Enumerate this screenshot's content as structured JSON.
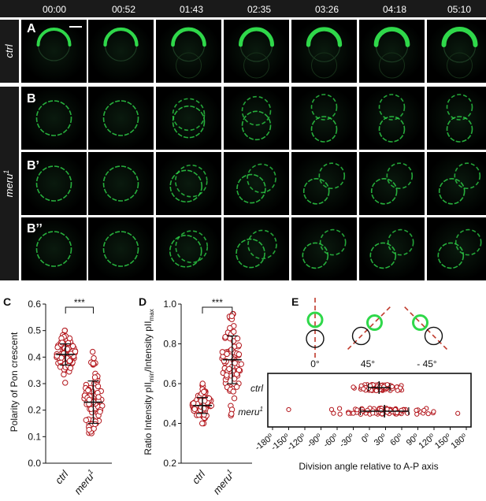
{
  "timepoints": [
    "00:00",
    "00:52",
    "01:43",
    "02:35",
    "03:26",
    "04:18",
    "05:10"
  ],
  "condition_labels": {
    "ctrl": "ctrl",
    "meru": "meru",
    "meru_sup": "1"
  },
  "row_labels": [
    "A",
    "B",
    "B’",
    "B’’"
  ],
  "panel_labels": {
    "c": "C",
    "d": "D",
    "e": "E"
  },
  "colors": {
    "bar": "#1a1a1a",
    "green": "#2fd84a",
    "point": "#b3161c",
    "dash": "#c0392b"
  },
  "chart_data": [
    {
      "panel": "C",
      "type": "scatter",
      "ylabel": "Polarity of Pon crescent",
      "ylim": [
        0.0,
        0.6
      ],
      "yticks": [
        "0.0",
        "0.1",
        "0.2",
        "0.3",
        "0.4",
        "0.5",
        "0.6"
      ],
      "categories": [
        "ctrl",
        "meru"
      ],
      "significance": "***",
      "series": [
        {
          "mean": 0.41,
          "sd": 0.04,
          "min": 0.3,
          "max": 0.5,
          "n": 95
        },
        {
          "mean": 0.23,
          "sd": 0.08,
          "min": 0.1,
          "max": 0.42,
          "n": 80
        }
      ]
    },
    {
      "panel": "D",
      "type": "scatter",
      "ylabel_parts": [
        "Ratio Intensity pII",
        "min",
        "/Intensity pII",
        "max"
      ],
      "ylim": [
        0.2,
        1.0
      ],
      "yticks": [
        "0.2",
        "0.4",
        "0.6",
        "0.8",
        "1.0"
      ],
      "categories": [
        "ctrl",
        "meru"
      ],
      "significance": "***",
      "series": [
        {
          "mean": 0.49,
          "sd": 0.04,
          "min": 0.4,
          "max": 0.6,
          "n": 95
        },
        {
          "mean": 0.72,
          "sd": 0.12,
          "min": 0.44,
          "max": 0.95,
          "n": 80
        }
      ]
    },
    {
      "panel": "E",
      "type": "scatter",
      "xlabel": "Division angle relative to A-P axis",
      "xlim": [
        -180,
        180
      ],
      "xticks": [
        "-180",
        "-150",
        "-120",
        "-90",
        "-60",
        "-30",
        "0",
        "30",
        "60",
        "90",
        "120",
        "150",
        "180"
      ],
      "degree": "o",
      "rows": [
        "ctrl",
        "meru"
      ],
      "schematic_labels": [
        "0°",
        "45°",
        "- 45°"
      ],
      "series": [
        {
          "mean": 18,
          "sd": 20,
          "min": -30,
          "max": 60,
          "n": 90
        },
        {
          "mean": 28,
          "sd": 45,
          "min": -150,
          "max": 165,
          "n": 100
        }
      ]
    }
  ]
}
